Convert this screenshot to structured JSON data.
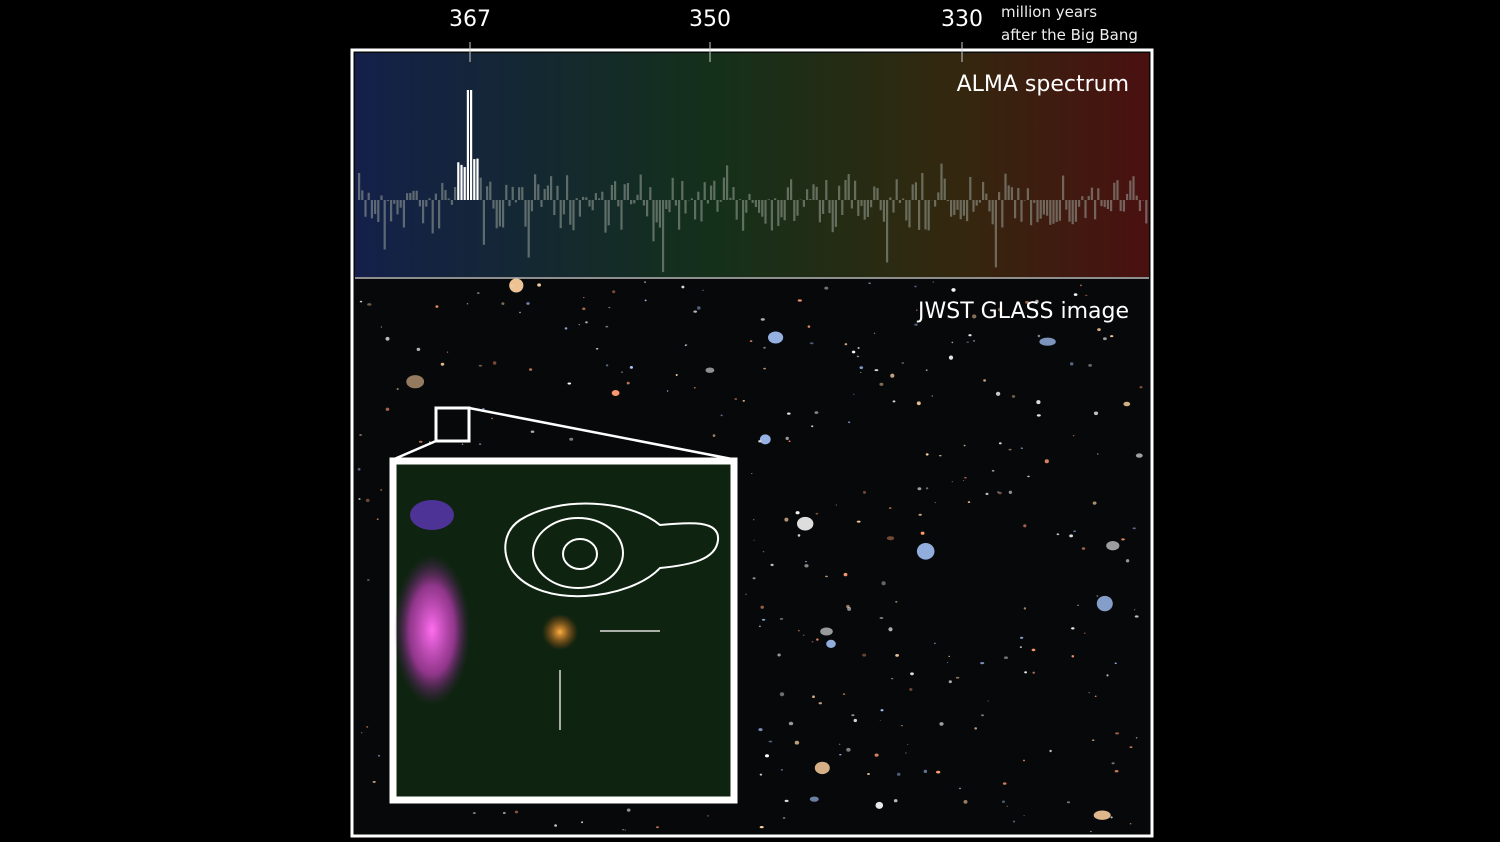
{
  "axis": {
    "ticks": [
      367,
      350,
      330
    ],
    "label_line1": "million years",
    "label_line2": "after the Big Bang"
  },
  "panels": [
    {
      "label": "ALMA spectrum"
    },
    {
      "label": "JWST GLASS image"
    }
  ]
}
